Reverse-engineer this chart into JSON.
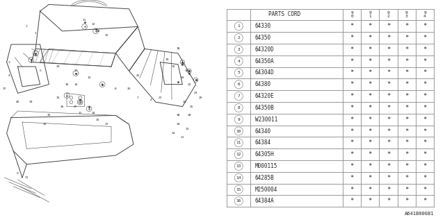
{
  "footer": "A641B00081",
  "rows": [
    [
      "1",
      "64330"
    ],
    [
      "2",
      "64350"
    ],
    [
      "3",
      "64320D"
    ],
    [
      "4",
      "64350A"
    ],
    [
      "5",
      "64304D"
    ],
    [
      "6",
      "64380"
    ],
    [
      "7",
      "64320E"
    ],
    [
      "8",
      "64350B"
    ],
    [
      "9",
      "W230011"
    ],
    [
      "10",
      "64340"
    ],
    [
      "11",
      "64384"
    ],
    [
      "12",
      "64305H"
    ],
    [
      "13",
      "M000115"
    ],
    [
      "14",
      "64285B"
    ],
    [
      "15",
      "M250004"
    ],
    [
      "16",
      "64384A"
    ]
  ],
  "year_cols": [
    "9\n0",
    "9\n1",
    "9\n2",
    "9\n3",
    "9\n4"
  ],
  "bg_color": "#ffffff",
  "line_color": "#888888",
  "text_color": "#222222",
  "font_size_parts": 5.5,
  "font_size_header": 5.5,
  "font_size_num": 4.5,
  "font_size_year": 4.5,
  "font_size_star": 6.5,
  "font_size_footer": 5.0
}
